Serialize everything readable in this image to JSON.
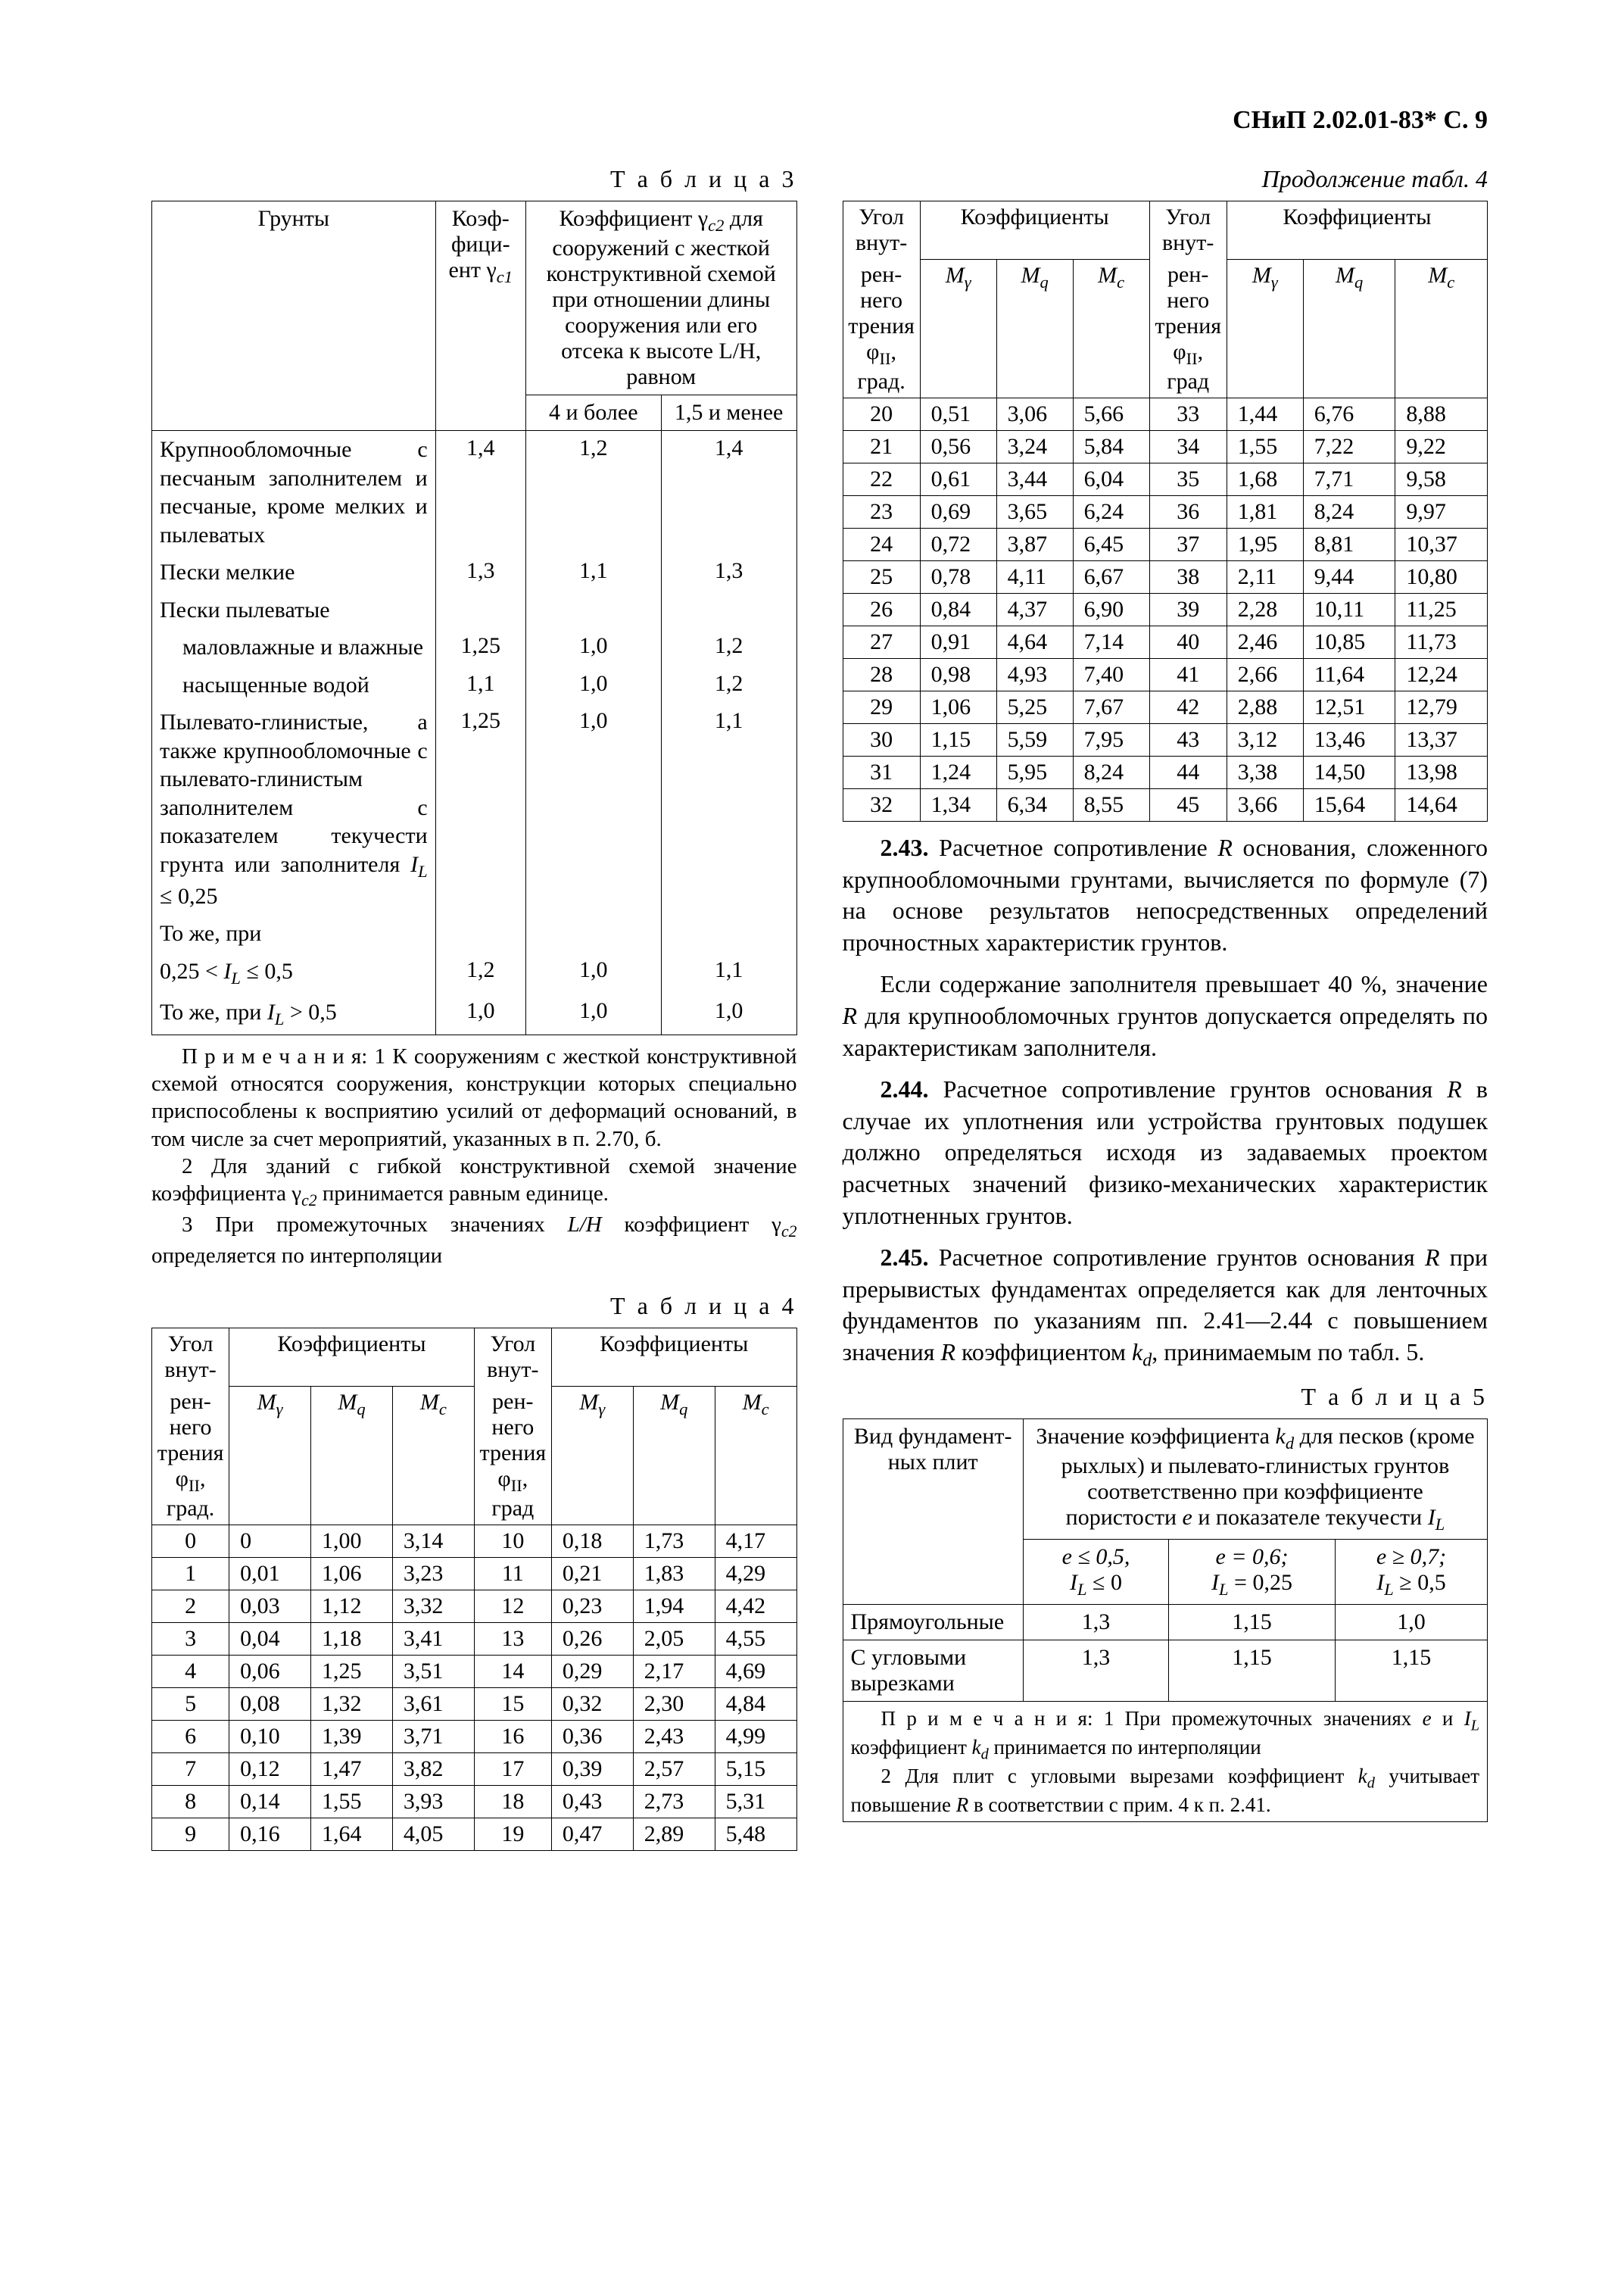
{
  "header": "СНиП 2.02.01-83* С. 9",
  "table3": {
    "title": "Т а б л и ц а  3",
    "head": {
      "soils": "Грунты",
      "coef": "Коэф­фици­ент γ",
      "coef_sub": "c1",
      "coef2_main": "Коэффициент γ",
      "coef2_sub": "c2",
      "coef2_rest": " для сооружений с жесткой конструк­тивной схемой при отношении длины сооружения или его отсека к высоте L/H, равном",
      "sub1": "4 и более",
      "sub2": "1,5 и менее"
    },
    "rows": [
      {
        "soil": "Крупнообломочные с песчаным заполните­лем и песчаные, кро­ме мелких и пылеватых",
        "c1": "1,4",
        "a": "1,2",
        "b": "1,4"
      },
      {
        "soil": "Пески мелкие",
        "c1": "1,3",
        "a": "1,1",
        "b": "1,3"
      },
      {
        "soil": "Пески пылеватые",
        "c1": "",
        "a": "",
        "b": ""
      },
      {
        "soil": "маловлажные и влажные",
        "indent": true,
        "c1": "1,25",
        "a": "1,0",
        "b": "1,2"
      },
      {
        "soil": "насыщенные водой",
        "indent": true,
        "c1": "1,1",
        "a": "1,0",
        "b": "1,2"
      },
      {
        "soil": "Пылевато-глинистые, а также крупнообло­мочные с пылевато-глинистым заполните­лем с показателем те­кучести грунта или за­полнителя I_L ≤ 0,25",
        "il": true,
        "c1": "1,25",
        "a": "1,0",
        "b": "1,1"
      },
      {
        "soil": "То же, при",
        "c1": "",
        "a": "",
        "b": ""
      },
      {
        "soil": "0,25 < I_L ≤ 0,5",
        "il": true,
        "c1": "1,2",
        "a": "1,0",
        "b": "1,1"
      },
      {
        "soil": "То же, при I_L > 0,5",
        "il": true,
        "c1": "1,0",
        "a": "1,0",
        "b": "1,0"
      }
    ],
    "notes": {
      "n1": "П р и м е ч а н и я: 1  К сооружениям с жесткой конструктивной схемой относятся сооружения, конст­рукции которых специально приспособлены к восприя­тию усилий от деформаций оснований, в том числе за счет мероприятий, указанных в п. 2.70, б.",
      "n2": "2  Для зданий с гибкой конструктивной схемой зна­чение коэффициента γ_{c2} принимается равным единице.",
      "n3": "3  При промежуточных значениях L/H коэффициент γ_{c2} определяется по интерполяции"
    }
  },
  "table4": {
    "title": "Т а б л и ц а  4",
    "cont_title": "Продолжение табл. 4",
    "head": {
      "angle_top": "Угол внут-",
      "angle_bot_1": "рен­него тре­ния",
      "angle_bot_2": "φ",
      "angle_bot_sub": "II",
      "angle_bot_3": ", град.",
      "coefs": "Коэффициенты",
      "m_gamma": "M",
      "m_gamma_sub": "γ",
      "m_q": "M",
      "m_q_sub": "q",
      "m_c": "M",
      "m_c_sub": "c"
    },
    "left_rows": [
      [
        "0",
        "0",
        "1,00",
        "3,14",
        "10",
        "0,18",
        "1,73",
        "4,17"
      ],
      [
        "1",
        "0,01",
        "1,06",
        "3,23",
        "11",
        "0,21",
        "1,83",
        "4,29"
      ],
      [
        "2",
        "0,03",
        "1,12",
        "3,32",
        "12",
        "0,23",
        "1,94",
        "4,42"
      ],
      [
        "3",
        "0,04",
        "1,18",
        "3,41",
        "13",
        "0,26",
        "2,05",
        "4,55"
      ],
      [
        "4",
        "0,06",
        "1,25",
        "3,51",
        "14",
        "0,29",
        "2,17",
        "4,69"
      ],
      [
        "5",
        "0,08",
        "1,32",
        "3,61",
        "15",
        "0,32",
        "2,30",
        "4,84"
      ],
      [
        "6",
        "0,10",
        "1,39",
        "3,71",
        "16",
        "0,36",
        "2,43",
        "4,99"
      ],
      [
        "7",
        "0,12",
        "1,47",
        "3,82",
        "17",
        "0,39",
        "2,57",
        "5,15"
      ],
      [
        "8",
        "0,14",
        "1,55",
        "3,93",
        "18",
        "0,43",
        "2,73",
        "5,31"
      ],
      [
        "9",
        "0,16",
        "1,64",
        "4,05",
        "19",
        "0,47",
        "2,89",
        "5,48"
      ]
    ],
    "right_rows": [
      [
        "20",
        "0,51",
        "3,06",
        "5,66",
        "33",
        "1,44",
        "6,76",
        "8,88"
      ],
      [
        "21",
        "0,56",
        "3,24",
        "5,84",
        "34",
        "1,55",
        "7,22",
        "9,22"
      ],
      [
        "22",
        "0,61",
        "3,44",
        "6,04",
        "35",
        "1,68",
        "7,71",
        "9,58"
      ],
      [
        "23",
        "0,69",
        "3,65",
        "6,24",
        "36",
        "1,81",
        "8,24",
        "9,97"
      ],
      [
        "24",
        "0,72",
        "3,87",
        "6,45",
        "37",
        "1,95",
        "8,81",
        "10,37"
      ],
      [
        "25",
        "0,78",
        "4,11",
        "6,67",
        "38",
        "2,11",
        "9,44",
        "10,80"
      ],
      [
        "26",
        "0,84",
        "4,37",
        "6,90",
        "39",
        "2,28",
        "10,11",
        "11,25"
      ],
      [
        "27",
        "0,91",
        "4,64",
        "7,14",
        "40",
        "2,46",
        "10,85",
        "11,73"
      ],
      [
        "28",
        "0,98",
        "4,93",
        "7,40",
        "41",
        "2,66",
        "11,64",
        "12,24"
      ],
      [
        "29",
        "1,06",
        "5,25",
        "7,67",
        "42",
        "2,88",
        "12,51",
        "12,79"
      ],
      [
        "30",
        "1,15",
        "5,59",
        "7,95",
        "43",
        "3,12",
        "13,46",
        "13,37"
      ],
      [
        "31",
        "1,24",
        "5,95",
        "8,24",
        "44",
        "3,38",
        "14,50",
        "13,98"
      ],
      [
        "32",
        "1,34",
        "6,34",
        "8,55",
        "45",
        "3,66",
        "15,64",
        "14,64"
      ]
    ]
  },
  "paragraphs": {
    "p243_a": "2.43. Расчетное сопротивление R основания, сложенного крупнообломочными грунтами, вычисляется по формуле (7) на основе резуль­татов непосредственных определений прочно­стных характеристик грунтов.",
    "p243_b": "Если содержание заполнителя превышает 40 %, значение R для крупнообломочных грун­тов допускается определять по характеристикам заполнителя.",
    "p244": "2.44. Расчетное сопротивление грунтов ос­нования R в случае их уплотнения или устрой­ства грунтовых подушек должно определяться исходя из задаваемых проектом расчетных зна­чений физико-механических характеристик уплотненных грунтов.",
    "p245": "2.45. Расчетное сопротивление грунтов осно­вания R при прерывистых фундаментах опреде­ляется как для ленточных фундаментов по ука­заниям пп. 2.41—2.44 с повышением значения R коэффициентом k_d, принимаемым по табл. 5."
  },
  "table5": {
    "title": "Т а б л и ц а  5",
    "head": {
      "col1": "Вид фундамент­ных плит",
      "col2": "Значение коэффициента k_d для песков (кроме рыхлых) и пылевато-глинис­тых грунтов соответственно при коэффициенте пористости e и показателе текучести I_L",
      "sub1a": "e ≤ 0,5,",
      "sub1b": "I_L ≤ 0",
      "sub2a": "e = 0,6;",
      "sub2b": "I_L = 0,25",
      "sub3a": "e ≥ 0,7;",
      "sub3b": "I_L ≥ 0,5"
    },
    "rows": [
      {
        "name": "Прямоугольные",
        "a": "1,3",
        "b": "1,15",
        "c": "1,0"
      },
      {
        "name": "С угловыми вырезками",
        "a": "1,3",
        "b": "1,15",
        "c": "1,15"
      }
    ],
    "notes": {
      "n1": "П р и м е ч а н и я: 1  При промежуточных значениях e и I_L коэффициент k_d принимается по интерполяции",
      "n2": "2  Для плит с угловыми вырезами коэффициент k_d учитывает повышение R в соответствии с прим. 4 к п. 2.41."
    }
  }
}
